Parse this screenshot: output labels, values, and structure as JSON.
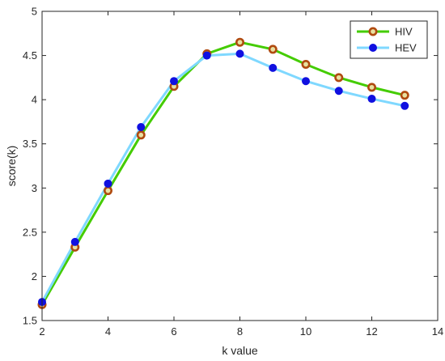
{
  "chart_data": {
    "type": "line",
    "title": "",
    "xlabel": "k value",
    "ylabel": "score(k)",
    "xlim": [
      2,
      14
    ],
    "ylim": [
      1.5,
      5
    ],
    "xticks": [
      2,
      4,
      6,
      8,
      10,
      12,
      14
    ],
    "yticks": [
      1.5,
      2,
      2.5,
      3,
      3.5,
      4,
      4.5,
      5
    ],
    "x": [
      2,
      3,
      4,
      5,
      6,
      7,
      8,
      9,
      10,
      11,
      12,
      13
    ],
    "grid": false,
    "legend_position": "top-right",
    "series": [
      {
        "name": "HIV",
        "values": [
          1.68,
          2.33,
          2.97,
          3.6,
          4.15,
          4.52,
          4.65,
          4.57,
          4.4,
          4.25,
          4.14,
          4.05
        ],
        "line_color": "#44cc00",
        "marker_edge": "#b04a10",
        "marker_face": "#e8e0a0",
        "marker": "ring"
      },
      {
        "name": "HEV",
        "values": [
          1.71,
          2.39,
          3.05,
          3.69,
          4.21,
          4.5,
          4.52,
          4.36,
          4.21,
          4.1,
          4.01,
          3.93
        ],
        "line_color": "#7fd8ff",
        "marker_edge": "#1010e0",
        "marker_face": "#1010e0",
        "marker": "dot"
      }
    ]
  }
}
